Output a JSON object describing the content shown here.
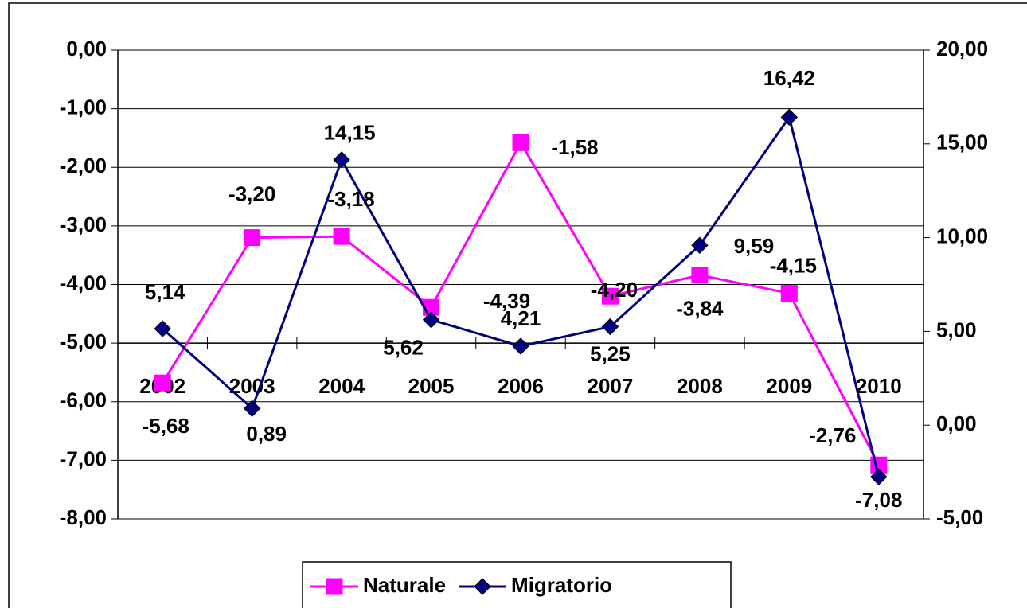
{
  "chart_data": {
    "type": "line",
    "categories": [
      "2002",
      "2003",
      "2004",
      "2005",
      "2006",
      "2007",
      "2008",
      "2009",
      "2010"
    ],
    "series": [
      {
        "name": "Naturale",
        "color": "#ff00ff",
        "marker": "square",
        "values": [
          -5.68,
          -3.2,
          -3.18,
          -4.39,
          -1.58,
          -4.2,
          -3.84,
          -4.15,
          -7.08
        ],
        "value_labels": [
          "-5,68",
          "-3,20",
          "-3,18",
          "-4,39",
          "-1,58",
          "-4,20",
          "-3,84",
          "-4,15",
          "-7,08"
        ]
      },
      {
        "name": "Migratorio",
        "color": "#000080",
        "marker": "diamond",
        "axis": "y2",
        "values": [
          5.14,
          0.89,
          14.15,
          5.62,
          4.21,
          5.25,
          9.59,
          16.42,
          -2.76
        ],
        "value_labels": [
          "5,14",
          "0,89",
          "14,15",
          "5,62",
          "4,21",
          "5,25",
          "9,59",
          "16,42",
          "-2,76"
        ]
      }
    ],
    "ylim": [
      -8,
      0
    ],
    "yticks": [
      {
        "value": 0,
        "label": "0,00"
      },
      {
        "value": -1,
        "label": "-1,00"
      },
      {
        "value": -2,
        "label": "-2,00"
      },
      {
        "value": -3,
        "label": "-3,00"
      },
      {
        "value": -4,
        "label": "-4,00"
      },
      {
        "value": -5,
        "label": "-5,00"
      },
      {
        "value": -6,
        "label": "-6,00"
      },
      {
        "value": -7,
        "label": "-7,00"
      },
      {
        "value": -8,
        "label": "-8,00"
      }
    ],
    "y2lim": [
      -5,
      20
    ],
    "y2ticks": [
      {
        "value": 20,
        "label": "20,00"
      },
      {
        "value": 15,
        "label": "15,00"
      },
      {
        "value": 10,
        "label": "10,00"
      },
      {
        "value": 5,
        "label": "5,00"
      },
      {
        "value": 0,
        "label": "0,00"
      },
      {
        "value": -5,
        "label": "-5,00"
      }
    ],
    "x_axis_crosses_at": -5,
    "grid": true,
    "legend": "bottom"
  }
}
